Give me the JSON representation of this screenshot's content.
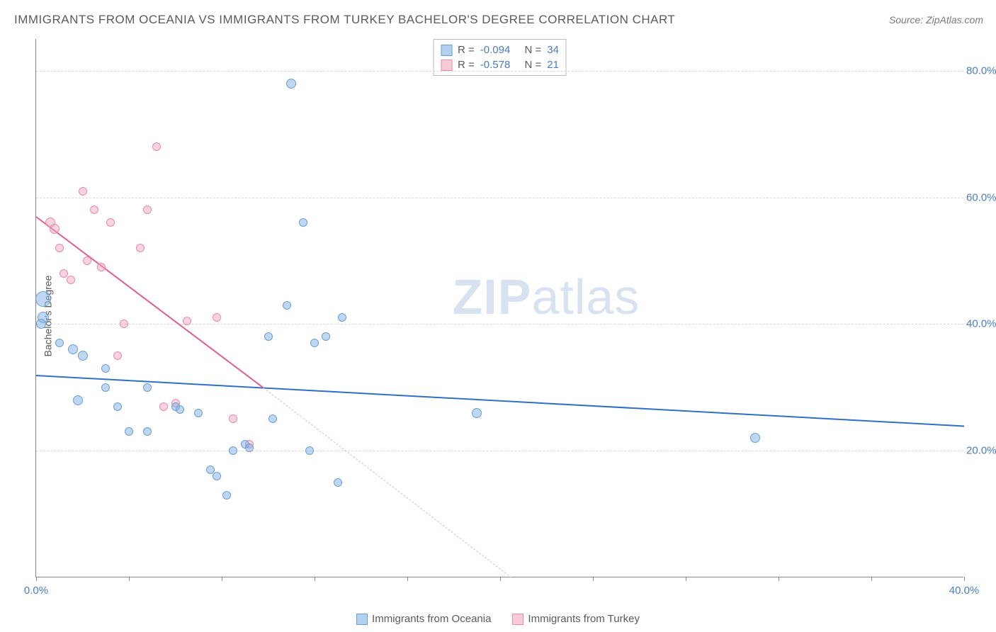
{
  "title": "IMMIGRANTS FROM OCEANIA VS IMMIGRANTS FROM TURKEY BACHELOR'S DEGREE CORRELATION CHART",
  "source_label": "Source: ZipAtlas.com",
  "ylabel": "Bachelor's Degree",
  "watermark_bold": "ZIP",
  "watermark_rest": "atlas",
  "chart": {
    "type": "scatter",
    "xlim": [
      0,
      40
    ],
    "ylim": [
      0,
      85
    ],
    "ytick_values": [
      20,
      40,
      60,
      80
    ],
    "ytick_labels": [
      "20.0%",
      "40.0%",
      "60.0%",
      "80.0%"
    ],
    "xtick_values": [
      0,
      40
    ],
    "xtick_labels": [
      "0.0%",
      "40.0%"
    ],
    "xtick_marks": [
      0,
      4,
      8,
      12,
      16,
      20,
      24,
      28,
      32,
      36,
      40
    ],
    "background_color": "#ffffff",
    "grid_color": "#d8d8d8",
    "axis_color": "#888888",
    "tick_label_color": "#4a7bc8",
    "text_color": "#5a5a5a"
  },
  "series": {
    "oceania": {
      "label": "Immigrants from Oceania",
      "color_fill": "rgba(127,176,230,0.5)",
      "color_stroke": "#6a9fd4",
      "trend_color": "#2f6fc7",
      "R": "-0.094",
      "N": "34",
      "trend_line": {
        "x1": 0,
        "y1": 32,
        "x2": 40,
        "y2": 24
      },
      "points": [
        {
          "x": 0.3,
          "y": 44,
          "r": 11
        },
        {
          "x": 0.3,
          "y": 41,
          "r": 8
        },
        {
          "x": 0.2,
          "y": 40,
          "r": 7
        },
        {
          "x": 1.0,
          "y": 37,
          "r": 6
        },
        {
          "x": 1.6,
          "y": 36,
          "r": 7
        },
        {
          "x": 2.0,
          "y": 35,
          "r": 7
        },
        {
          "x": 1.8,
          "y": 28,
          "r": 7
        },
        {
          "x": 3.0,
          "y": 33,
          "r": 6
        },
        {
          "x": 3.5,
          "y": 27,
          "r": 6
        },
        {
          "x": 3.0,
          "y": 30,
          "r": 6
        },
        {
          "x": 4.0,
          "y": 23,
          "r": 6
        },
        {
          "x": 4.8,
          "y": 23,
          "r": 6
        },
        {
          "x": 4.8,
          "y": 30,
          "r": 6
        },
        {
          "x": 6.0,
          "y": 27,
          "r": 6
        },
        {
          "x": 6.2,
          "y": 26.5,
          "r": 6
        },
        {
          "x": 7.0,
          "y": 26,
          "r": 6
        },
        {
          "x": 7.5,
          "y": 17,
          "r": 6
        },
        {
          "x": 7.8,
          "y": 16,
          "r": 6
        },
        {
          "x": 8.2,
          "y": 13,
          "r": 6
        },
        {
          "x": 8.5,
          "y": 20,
          "r": 6
        },
        {
          "x": 9.0,
          "y": 21,
          "r": 6
        },
        {
          "x": 9.2,
          "y": 20.5,
          "r": 6
        },
        {
          "x": 10.0,
          "y": 38,
          "r": 6
        },
        {
          "x": 10.2,
          "y": 25,
          "r": 6
        },
        {
          "x": 10.8,
          "y": 43,
          "r": 6
        },
        {
          "x": 11.0,
          "y": 78,
          "r": 7
        },
        {
          "x": 11.5,
          "y": 56,
          "r": 6
        },
        {
          "x": 11.8,
          "y": 20,
          "r": 6
        },
        {
          "x": 12.0,
          "y": 37,
          "r": 6
        },
        {
          "x": 12.5,
          "y": 38,
          "r": 6
        },
        {
          "x": 13.0,
          "y": 15,
          "r": 6
        },
        {
          "x": 13.2,
          "y": 41,
          "r": 6
        },
        {
          "x": 19.0,
          "y": 26,
          "r": 7
        },
        {
          "x": 31.0,
          "y": 22,
          "r": 7
        }
      ]
    },
    "turkey": {
      "label": "Immigrants from Turkey",
      "color_fill": "rgba(243,168,188,0.5)",
      "color_stroke": "#e88aa8",
      "trend_color": "#e85a8a",
      "R": "-0.578",
      "N": "21",
      "trend_line_solid": {
        "x1": 0,
        "y1": 57,
        "x2": 9.8,
        "y2": 30
      },
      "trend_line_dash": {
        "x1": 9.8,
        "y1": 30,
        "x2": 20.5,
        "y2": 0
      },
      "points": [
        {
          "x": 0.6,
          "y": 56,
          "r": 7
        },
        {
          "x": 0.8,
          "y": 55,
          "r": 7
        },
        {
          "x": 1.0,
          "y": 52,
          "r": 6
        },
        {
          "x": 1.2,
          "y": 48,
          "r": 6
        },
        {
          "x": 1.5,
          "y": 47,
          "r": 6
        },
        {
          "x": 2.0,
          "y": 61,
          "r": 6
        },
        {
          "x": 2.2,
          "y": 50,
          "r": 6
        },
        {
          "x": 2.5,
          "y": 58,
          "r": 6
        },
        {
          "x": 2.8,
          "y": 49,
          "r": 6
        },
        {
          "x": 3.2,
          "y": 56,
          "r": 6
        },
        {
          "x": 3.5,
          "y": 35,
          "r": 6
        },
        {
          "x": 3.8,
          "y": 40,
          "r": 6
        },
        {
          "x": 4.5,
          "y": 52,
          "r": 6
        },
        {
          "x": 4.8,
          "y": 58,
          "r": 6
        },
        {
          "x": 5.2,
          "y": 68,
          "r": 6
        },
        {
          "x": 5.5,
          "y": 27,
          "r": 6
        },
        {
          "x": 6.0,
          "y": 27.5,
          "r": 6
        },
        {
          "x": 7.8,
          "y": 41,
          "r": 6
        },
        {
          "x": 8.5,
          "y": 25,
          "r": 6
        },
        {
          "x": 9.2,
          "y": 21,
          "r": 6
        },
        {
          "x": 6.5,
          "y": 40.5,
          "r": 6
        }
      ]
    }
  },
  "stat_box_labels": {
    "R": "R =",
    "N": "N ="
  }
}
